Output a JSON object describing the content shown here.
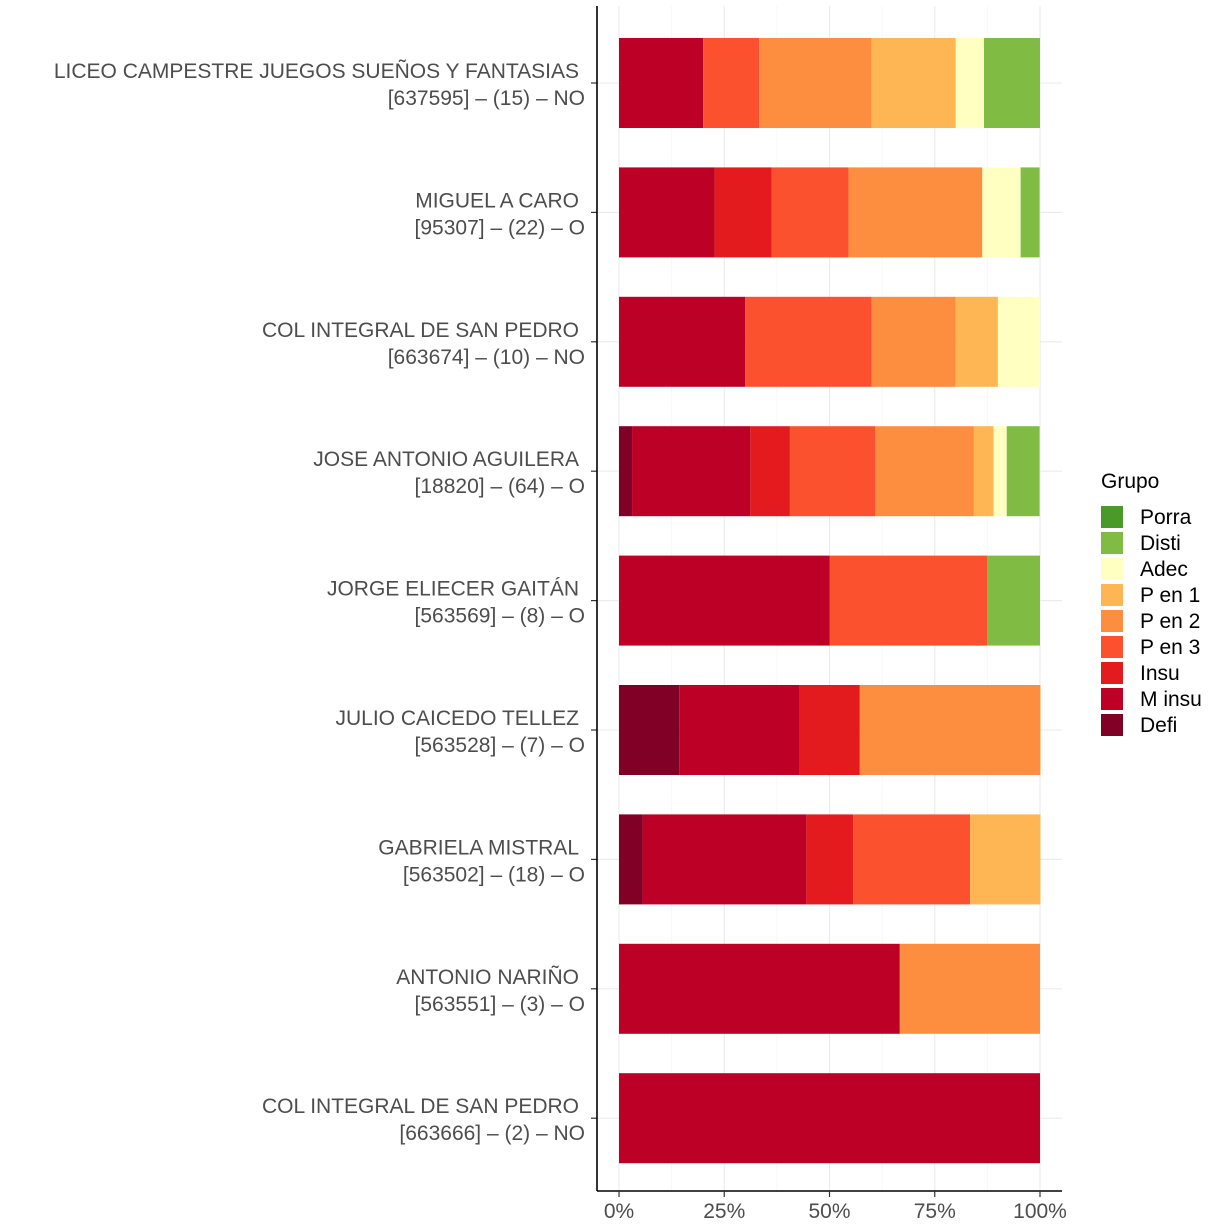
{
  "chart_data": {
    "type": "bar",
    "orientation": "horizontal",
    "stacked": true,
    "percent": true,
    "title": "",
    "xlabel": "",
    "ylabel": "",
    "xlim": [
      0,
      1
    ],
    "x_ticks": [
      "0%",
      "25%",
      "50%",
      "75%",
      "100%"
    ],
    "x_tick_values": [
      0,
      0.25,
      0.5,
      0.75,
      1.0
    ],
    "grid": true,
    "legend": {
      "title": "Grupo",
      "placement": "right",
      "entries": [
        "Porra",
        "Disti",
        "Adec",
        "P en 1",
        "P en 2",
        "P en 3",
        "Insu",
        "M insu",
        "Defi"
      ]
    },
    "segment_order": [
      "Defi",
      "M insu",
      "Insu",
      "P en 3",
      "P en 2",
      "P en 1",
      "Adec",
      "Disti",
      "Porra"
    ],
    "colors": {
      "Porra": "#4b9a29",
      "Disti": "#80bc43",
      "Adec": "#ffffc2",
      "P en 1": "#feb553",
      "P en 2": "#fd8e3f",
      "P en 3": "#fc512f",
      "Insu": "#e31b1f",
      "M insu": "#bd0026",
      "Defi": "#800026"
    },
    "categories": [
      {
        "line1": "LICEO CAMPESTRE JUEGOS SUEÑOS Y FANTASIAS",
        "line2": "[637595] – (15) – NO",
        "values": {
          "Defi": 0,
          "M insu": 0.2,
          "Insu": 0,
          "P en 3": 0.133,
          "P en 2": 0.267,
          "P en 1": 0.2,
          "Adec": 0.067,
          "Disti": 0.133,
          "Porra": 0
        }
      },
      {
        "line1": "MIGUEL A CARO",
        "line2": "[95307] – (22) – O",
        "values": {
          "Defi": 0,
          "M insu": 0.227,
          "Insu": 0.136,
          "P en 3": 0.182,
          "P en 2": 0.318,
          "P en 1": 0,
          "Adec": 0.091,
          "Disti": 0.045,
          "Porra": 0
        }
      },
      {
        "line1": "COL INTEGRAL DE SAN PEDRO",
        "line2": "[663674] – (10) – NO",
        "values": {
          "Defi": 0,
          "M insu": 0.3,
          "Insu": 0,
          "P en 3": 0.3,
          "P en 2": 0.2,
          "P en 1": 0.1,
          "Adec": 0.1,
          "Disti": 0,
          "Porra": 0
        }
      },
      {
        "line1": "JOSE ANTONIO AGUILERA",
        "line2": "[18820] – (64) – O",
        "values": {
          "Defi": 0.031,
          "M insu": 0.281,
          "Insu": 0.094,
          "P en 3": 0.203,
          "P en 2": 0.234,
          "P en 1": 0.047,
          "Adec": 0.031,
          "Disti": 0.078,
          "Porra": 0
        }
      },
      {
        "line1": "JORGE ELIECER GAITÁN",
        "line2": "[563569] – (8) – O",
        "values": {
          "Defi": 0,
          "M insu": 0.5,
          "Insu": 0,
          "P en 3": 0.375,
          "P en 2": 0,
          "P en 1": 0,
          "Adec": 0,
          "Disti": 0.125,
          "Porra": 0
        }
      },
      {
        "line1": "JULIO CAICEDO TELLEZ",
        "line2": "[563528] – (7) – O",
        "values": {
          "Defi": 0.143,
          "M insu": 0.286,
          "Insu": 0.143,
          "P en 3": 0,
          "P en 2": 0.429,
          "P en 1": 0,
          "Adec": 0,
          "Disti": 0,
          "Porra": 0
        }
      },
      {
        "line1": "GABRIELA MISTRAL",
        "line2": "[563502] – (18) – O",
        "values": {
          "Defi": 0.056,
          "M insu": 0.389,
          "Insu": 0.111,
          "P en 3": 0.278,
          "P en 2": 0,
          "P en 1": 0.167,
          "Adec": 0,
          "Disti": 0,
          "Porra": 0
        }
      },
      {
        "line1": "ANTONIO NARIÑO",
        "line2": "[563551] – (3) – O",
        "values": {
          "Defi": 0,
          "M insu": 0.667,
          "Insu": 0,
          "P en 3": 0,
          "P en 2": 0.333,
          "P en 1": 0,
          "Adec": 0,
          "Disti": 0,
          "Porra": 0
        }
      },
      {
        "line1": "COL INTEGRAL DE SAN PEDRO",
        "line2": "[663666] – (2) – NO",
        "values": {
          "Defi": 0,
          "M insu": 1.0,
          "Insu": 0,
          "P en 3": 0,
          "P en 2": 0,
          "P en 1": 0,
          "Adec": 0,
          "Disti": 0,
          "Porra": 0
        }
      }
    ]
  }
}
